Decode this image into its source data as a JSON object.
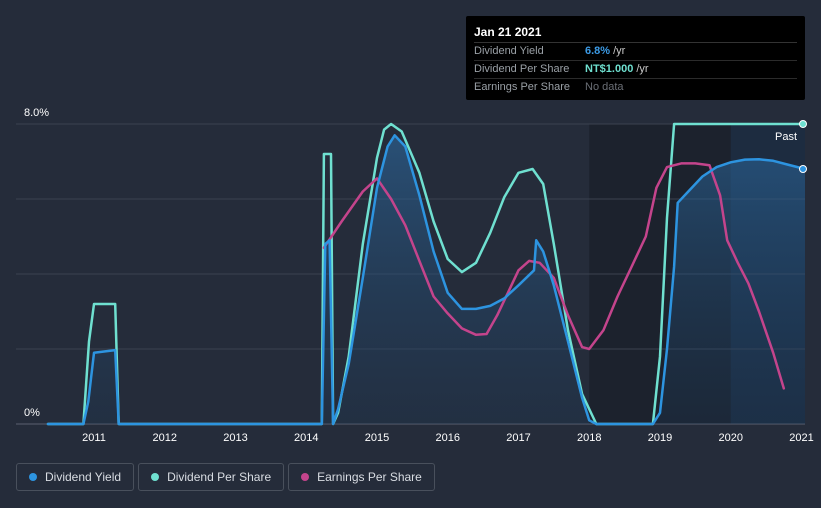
{
  "tooltip": {
    "date": "Jan 21 2021",
    "rows": [
      {
        "label": "Dividend Yield",
        "value": "6.8%",
        "unit": "/yr",
        "color": "#3c9be6"
      },
      {
        "label": "Dividend Per Share",
        "value": "NT$1.000",
        "unit": "/yr",
        "color": "#6fe0d0"
      },
      {
        "label": "Earnings Per Share",
        "value": "No data",
        "unit": "",
        "color": "#6b6f76"
      }
    ]
  },
  "legend": [
    {
      "label": "Dividend Yield",
      "color": "#2d94e0"
    },
    {
      "label": "Dividend Per Share",
      "color": "#6fe0d0"
    },
    {
      "label": "Earnings Per Share",
      "color": "#c4448c"
    }
  ],
  "chart_data": {
    "type": "line",
    "y_labels": {
      "top": "8.0%",
      "bottom": "0%"
    },
    "ylim": [
      0,
      8
    ],
    "xlim": [
      2010.35,
      2021.05
    ],
    "x_ticks": [
      {
        "x": 2011,
        "label": "2011"
      },
      {
        "x": 2012,
        "label": "2012"
      },
      {
        "x": 2013,
        "label": "2013"
      },
      {
        "x": 2014,
        "label": "2014"
      },
      {
        "x": 2015,
        "label": "2015"
      },
      {
        "x": 2016,
        "label": "2016"
      },
      {
        "x": 2017,
        "label": "2017"
      },
      {
        "x": 2018,
        "label": "2018"
      },
      {
        "x": 2019,
        "label": "2019"
      },
      {
        "x": 2020,
        "label": "2020"
      },
      {
        "x": 2021,
        "label": "2021"
      }
    ],
    "past_label": "Past",
    "past_start": 2020.0,
    "series": [
      {
        "name": "Dividend Yield",
        "color": "#2d94e0",
        "points": [
          [
            2010.35,
            0
          ],
          [
            2010.85,
            0
          ],
          [
            2010.92,
            0.6
          ],
          [
            2011.0,
            1.9
          ],
          [
            2011.3,
            1.97
          ],
          [
            2011.35,
            0
          ],
          [
            2014.22,
            0
          ],
          [
            2014.27,
            4.8
          ],
          [
            2014.33,
            4.9
          ],
          [
            2014.38,
            0
          ],
          [
            2014.45,
            0.4
          ],
          [
            2014.6,
            1.6
          ],
          [
            2014.8,
            3.9
          ],
          [
            2015.0,
            6.3
          ],
          [
            2015.15,
            7.4
          ],
          [
            2015.25,
            7.7
          ],
          [
            2015.4,
            7.4
          ],
          [
            2015.6,
            6.1
          ],
          [
            2015.8,
            4.6
          ],
          [
            2016.0,
            3.5
          ],
          [
            2016.2,
            3.07
          ],
          [
            2016.4,
            3.07
          ],
          [
            2016.6,
            3.15
          ],
          [
            2016.8,
            3.35
          ],
          [
            2017.0,
            3.7
          ],
          [
            2017.22,
            4.1
          ],
          [
            2017.25,
            4.9
          ],
          [
            2017.35,
            4.6
          ],
          [
            2017.5,
            3.7
          ],
          [
            2017.7,
            2.2
          ],
          [
            2017.9,
            0.7
          ],
          [
            2018.0,
            0.1
          ],
          [
            2018.1,
            0
          ],
          [
            2018.9,
            0
          ],
          [
            2019.0,
            0.3
          ],
          [
            2019.1,
            2.0
          ],
          [
            2019.2,
            4.2
          ],
          [
            2019.25,
            5.9
          ],
          [
            2019.4,
            6.2
          ],
          [
            2019.6,
            6.6
          ],
          [
            2019.8,
            6.85
          ],
          [
            2020.0,
            6.98
          ],
          [
            2020.2,
            7.05
          ],
          [
            2020.4,
            7.06
          ],
          [
            2020.6,
            7.02
          ],
          [
            2020.8,
            6.92
          ],
          [
            2021.05,
            6.8
          ]
        ]
      },
      {
        "name": "Dividend Per Share",
        "color": "#6fe0d0",
        "points": [
          [
            2010.35,
            0
          ],
          [
            2010.85,
            0
          ],
          [
            2010.93,
            2.2
          ],
          [
            2011.0,
            3.2
          ],
          [
            2011.3,
            3.2
          ],
          [
            2011.35,
            0
          ],
          [
            2014.22,
            0
          ],
          [
            2014.25,
            7.2
          ],
          [
            2014.35,
            7.2
          ],
          [
            2014.38,
            0
          ],
          [
            2014.45,
            0.3
          ],
          [
            2014.6,
            1.8
          ],
          [
            2014.8,
            4.8
          ],
          [
            2015.0,
            7.1
          ],
          [
            2015.1,
            7.85
          ],
          [
            2015.2,
            8.0
          ],
          [
            2015.35,
            7.8
          ],
          [
            2015.6,
            6.7
          ],
          [
            2015.8,
            5.4
          ],
          [
            2016.0,
            4.4
          ],
          [
            2016.2,
            4.05
          ],
          [
            2016.4,
            4.3
          ],
          [
            2016.6,
            5.1
          ],
          [
            2016.8,
            6.05
          ],
          [
            2017.0,
            6.7
          ],
          [
            2017.2,
            6.8
          ],
          [
            2017.35,
            6.4
          ],
          [
            2017.5,
            4.8
          ],
          [
            2017.7,
            2.5
          ],
          [
            2017.9,
            0.8
          ],
          [
            2018.1,
            0
          ],
          [
            2018.9,
            0
          ],
          [
            2019.0,
            1.8
          ],
          [
            2019.1,
            5.5
          ],
          [
            2019.2,
            8.0
          ],
          [
            2021.05,
            8.0
          ]
        ]
      },
      {
        "name": "Earnings Per Share",
        "color": "#c4448c",
        "points": [
          [
            2014.25,
            4.7
          ],
          [
            2014.5,
            5.4
          ],
          [
            2014.8,
            6.2
          ],
          [
            2015.0,
            6.55
          ],
          [
            2015.2,
            6.0
          ],
          [
            2015.4,
            5.3
          ],
          [
            2015.6,
            4.35
          ],
          [
            2015.8,
            3.4
          ],
          [
            2016.0,
            2.95
          ],
          [
            2016.2,
            2.55
          ],
          [
            2016.4,
            2.38
          ],
          [
            2016.55,
            2.4
          ],
          [
            2016.7,
            2.9
          ],
          [
            2016.85,
            3.5
          ],
          [
            2017.0,
            4.1
          ],
          [
            2017.15,
            4.35
          ],
          [
            2017.3,
            4.3
          ],
          [
            2017.5,
            3.9
          ],
          [
            2017.7,
            2.9
          ],
          [
            2017.9,
            2.05
          ],
          [
            2018.0,
            2.0
          ],
          [
            2018.2,
            2.5
          ],
          [
            2018.4,
            3.4
          ],
          [
            2018.6,
            4.2
          ],
          [
            2018.8,
            5.0
          ],
          [
            2018.95,
            6.3
          ],
          [
            2019.1,
            6.85
          ],
          [
            2019.3,
            6.95
          ],
          [
            2019.5,
            6.95
          ],
          [
            2019.7,
            6.9
          ],
          [
            2019.85,
            6.1
          ],
          [
            2019.95,
            4.9
          ],
          [
            2020.1,
            4.3
          ],
          [
            2020.25,
            3.75
          ],
          [
            2020.4,
            3.0
          ],
          [
            2020.6,
            1.9
          ],
          [
            2020.75,
            0.95
          ]
        ]
      }
    ]
  }
}
